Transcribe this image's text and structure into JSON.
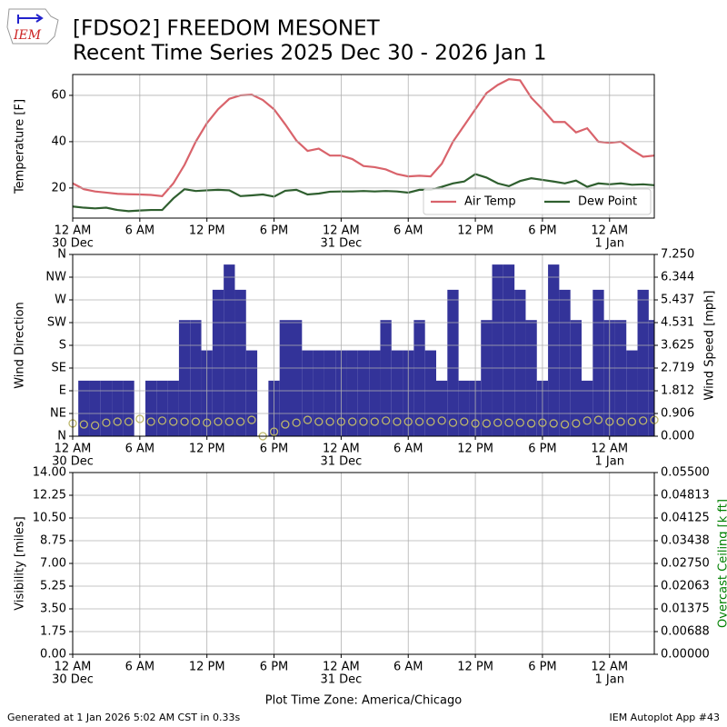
{
  "logo": "IEM",
  "title": [
    "[FDSO2] FREEDOM MESONET",
    "Recent Time Series 2025 Dec 30 - 2026 Jan 1"
  ],
  "footer": {
    "left": "Generated at 1 Jan 2026 5:02 AM CST in 0.33s",
    "right": "IEM Autoplot App #43"
  },
  "chart_data": [
    {
      "type": "line",
      "ylabel": "Temperature [F]",
      "grid": true,
      "legend": "lower right",
      "x": [
        0,
        1,
        2,
        3,
        4,
        5,
        6,
        7,
        8,
        9,
        10,
        11,
        12,
        13,
        14,
        15,
        16,
        17,
        18,
        19,
        20,
        21,
        22,
        23,
        24,
        25,
        26,
        27,
        28,
        29,
        30,
        31,
        32,
        33,
        34,
        35,
        36,
        37,
        38,
        39,
        40,
        41,
        42,
        43,
        44,
        45,
        46,
        47,
        48,
        49,
        50,
        51,
        52
      ],
      "xlim": [
        0,
        52
      ],
      "xticks": [
        {
          "value": 0,
          "label": "12 AM"
        },
        {
          "value": 6,
          "label": "6 AM"
        },
        {
          "value": 12,
          "label": "12 PM"
        },
        {
          "value": 18,
          "label": "6 PM"
        },
        {
          "value": 24,
          "label": "12 AM"
        },
        {
          "value": 30,
          "label": "6 AM"
        },
        {
          "value": 36,
          "label": "12 PM"
        },
        {
          "value": 42,
          "label": "6 PM"
        },
        {
          "value": 48,
          "label": "12 AM"
        }
      ],
      "xtick_dates": [
        {
          "value": 0,
          "label": "30 Dec"
        },
        {
          "value": 24,
          "label": "31 Dec"
        },
        {
          "value": 48,
          "label": "1 Jan"
        }
      ],
      "ylim": [
        7,
        69
      ],
      "yticks": [
        20,
        40,
        60
      ],
      "series": [
        {
          "name": "Air Temp",
          "color": "#d9636b",
          "values": [
            22,
            19.5,
            18.5,
            18,
            17.5,
            17.3,
            17.2,
            17,
            16.5,
            22,
            30,
            40,
            48,
            54,
            58.5,
            60,
            60.3,
            58,
            54,
            47.5,
            40.5,
            36,
            37,
            34,
            34,
            32.5,
            29.5,
            29,
            28,
            26,
            25,
            25.3,
            25,
            30.5,
            40,
            47,
            54,
            61,
            64.5,
            67,
            66.5,
            59,
            54,
            48.5,
            48.5,
            44,
            45.8,
            40,
            39.5,
            40,
            36.5,
            33.5,
            34
          ]
        },
        {
          "name": "Dew Point",
          "color": "#2f5f2f",
          "values": [
            12,
            11.5,
            11.2,
            11.5,
            10.5,
            10,
            10.3,
            10.5,
            10.5,
            15.5,
            19.5,
            18.7,
            19,
            19.2,
            19,
            16.5,
            16.8,
            17.2,
            16.3,
            18.8,
            19.2,
            17.2,
            17.6,
            18.4,
            18.5,
            18.5,
            18.7,
            18.5,
            18.7,
            18.5,
            18,
            19.2,
            19.2,
            20.5,
            22,
            22.8,
            26,
            24.5,
            22,
            20.8,
            23,
            24.2,
            23.5,
            22.8,
            22,
            23.2,
            20.5,
            22,
            21.6,
            22,
            21.4,
            21.6,
            21.2
          ]
        }
      ]
    },
    {
      "type": "bar",
      "ylabel": "Wind Direction",
      "y2label": "Wind Speed [mph]",
      "grid": true,
      "x": [
        0,
        1,
        2,
        3,
        4,
        5,
        6,
        7,
        8,
        9,
        10,
        11,
        12,
        13,
        14,
        15,
        16,
        17,
        18,
        19,
        20,
        21,
        22,
        23,
        24,
        25,
        26,
        27,
        28,
        29,
        30,
        31,
        32,
        33,
        34,
        35,
        36,
        37,
        38,
        39,
        40,
        41,
        42,
        43,
        44,
        45,
        46,
        47,
        48,
        49,
        50,
        51,
        52
      ],
      "xlim": [
        0,
        52
      ],
      "xticks": [
        {
          "value": 0,
          "label": "12 AM"
        },
        {
          "value": 6,
          "label": "6 AM"
        },
        {
          "value": 12,
          "label": "12 PM"
        },
        {
          "value": 18,
          "label": "6 PM"
        },
        {
          "value": 24,
          "label": "12 AM"
        },
        {
          "value": 30,
          "label": "6 AM"
        },
        {
          "value": 36,
          "label": "12 PM"
        },
        {
          "value": 42,
          "label": "6 PM"
        },
        {
          "value": 48,
          "label": "12 AM"
        }
      ],
      "xtick_dates": [
        {
          "value": 0,
          "label": "30 Dec"
        },
        {
          "value": 24,
          "label": "31 Dec"
        },
        {
          "value": 48,
          "label": "1 Jan"
        }
      ],
      "ylim": [
        0,
        360
      ],
      "yticks": [
        {
          "value": 0,
          "label": "N"
        },
        {
          "value": 45,
          "label": "NE"
        },
        {
          "value": 90,
          "label": "E"
        },
        {
          "value": 135,
          "label": "SE"
        },
        {
          "value": 180,
          "label": "S"
        },
        {
          "value": 225,
          "label": "SW"
        },
        {
          "value": 270,
          "label": "W"
        },
        {
          "value": 315,
          "label": "NW"
        },
        {
          "value": 360,
          "label": "N"
        }
      ],
      "y2lim": [
        0,
        7.25
      ],
      "y2ticks": [
        {
          "value": 0,
          "label": "0.000"
        },
        {
          "value": 0.906,
          "label": "0.906"
        },
        {
          "value": 1.812,
          "label": "1.812"
        },
        {
          "value": 2.719,
          "label": "2.719"
        },
        {
          "value": 3.625,
          "label": "3.625"
        },
        {
          "value": 4.531,
          "label": "4.531"
        },
        {
          "value": 5.437,
          "label": "5.437"
        },
        {
          "value": 6.344,
          "label": "6.344"
        },
        {
          "value": 7.25,
          "label": "7.250"
        }
      ],
      "series": [
        {
          "color": "#333399",
          "values": [
            null,
            110,
            110,
            110,
            110,
            110,
            null,
            110,
            110,
            110,
            230,
            230,
            170,
            290,
            340,
            290,
            170,
            null,
            110,
            230,
            230,
            170,
            170,
            170,
            170,
            170,
            170,
            170,
            230,
            170,
            170,
            230,
            170,
            110,
            290,
            110,
            110,
            230,
            340,
            340,
            290,
            230,
            110,
            340,
            290,
            230,
            110,
            290,
            230,
            230,
            170,
            290,
            230
          ]
        },
        {
          "color": "#bdb76b",
          "axis": "y2",
          "values": [
            0.51,
            0.47,
            0.43,
            0.54,
            0.58,
            0.58,
            0.69,
            0.58,
            0.62,
            0.58,
            0.58,
            0.58,
            0.54,
            0.58,
            0.58,
            0.58,
            0.65,
            0,
            0.18,
            0.47,
            0.54,
            0.65,
            0.58,
            0.58,
            0.58,
            0.58,
            0.58,
            0.58,
            0.62,
            0.58,
            0.58,
            0.58,
            0.58,
            0.62,
            0.54,
            0.58,
            0.51,
            0.51,
            0.54,
            0.54,
            0.54,
            0.51,
            0.54,
            0.51,
            0.47,
            0.51,
            0.62,
            0.65,
            0.58,
            0.58,
            0.58,
            0.62,
            0.65
          ]
        }
      ]
    },
    {
      "type": "line",
      "ylabel": "Visibility [miles]",
      "y2label": "Overcast Ceiling [k ft]",
      "y2label_color": "#008000",
      "xlabel": "Plot Time Zone: America/Chicago",
      "grid": true,
      "xlim": [
        0,
        52
      ],
      "xticks": [
        {
          "value": 0,
          "label": "12 AM"
        },
        {
          "value": 6,
          "label": "6 AM"
        },
        {
          "value": 12,
          "label": "12 PM"
        },
        {
          "value": 18,
          "label": "6 PM"
        },
        {
          "value": 24,
          "label": "12 AM"
        },
        {
          "value": 30,
          "label": "6 AM"
        },
        {
          "value": 36,
          "label": "12 PM"
        },
        {
          "value": 42,
          "label": "6 PM"
        },
        {
          "value": 48,
          "label": "12 AM"
        }
      ],
      "xtick_dates": [
        {
          "value": 0,
          "label": "30 Dec"
        },
        {
          "value": 24,
          "label": "31 Dec"
        },
        {
          "value": 48,
          "label": "1 Jan"
        }
      ],
      "ylim": [
        0,
        14
      ],
      "yticks": [
        {
          "value": 0,
          "label": "0.00"
        },
        {
          "value": 1.75,
          "label": "1.75"
        },
        {
          "value": 3.5,
          "label": "3.50"
        },
        {
          "value": 5.25,
          "label": "5.25"
        },
        {
          "value": 7,
          "label": "7.00"
        },
        {
          "value": 8.75,
          "label": "8.75"
        },
        {
          "value": 10.5,
          "label": "10.50"
        },
        {
          "value": 12.25,
          "label": "12.25"
        },
        {
          "value": 14,
          "label": "14.00"
        }
      ],
      "y2lim": [
        0,
        0.055
      ],
      "y2ticks": [
        {
          "value": 0,
          "label": "0.00000"
        },
        {
          "value": 0.006875,
          "label": "0.00688"
        },
        {
          "value": 0.01375,
          "label": "0.01375"
        },
        {
          "value": 0.020625,
          "label": "0.02063"
        },
        {
          "value": 0.0275,
          "label": "0.02750"
        },
        {
          "value": 0.034375,
          "label": "0.03438"
        },
        {
          "value": 0.04125,
          "label": "0.04125"
        },
        {
          "value": 0.048125,
          "label": "0.04813"
        },
        {
          "value": 0.055,
          "label": "0.05500"
        }
      ],
      "series": []
    }
  ]
}
